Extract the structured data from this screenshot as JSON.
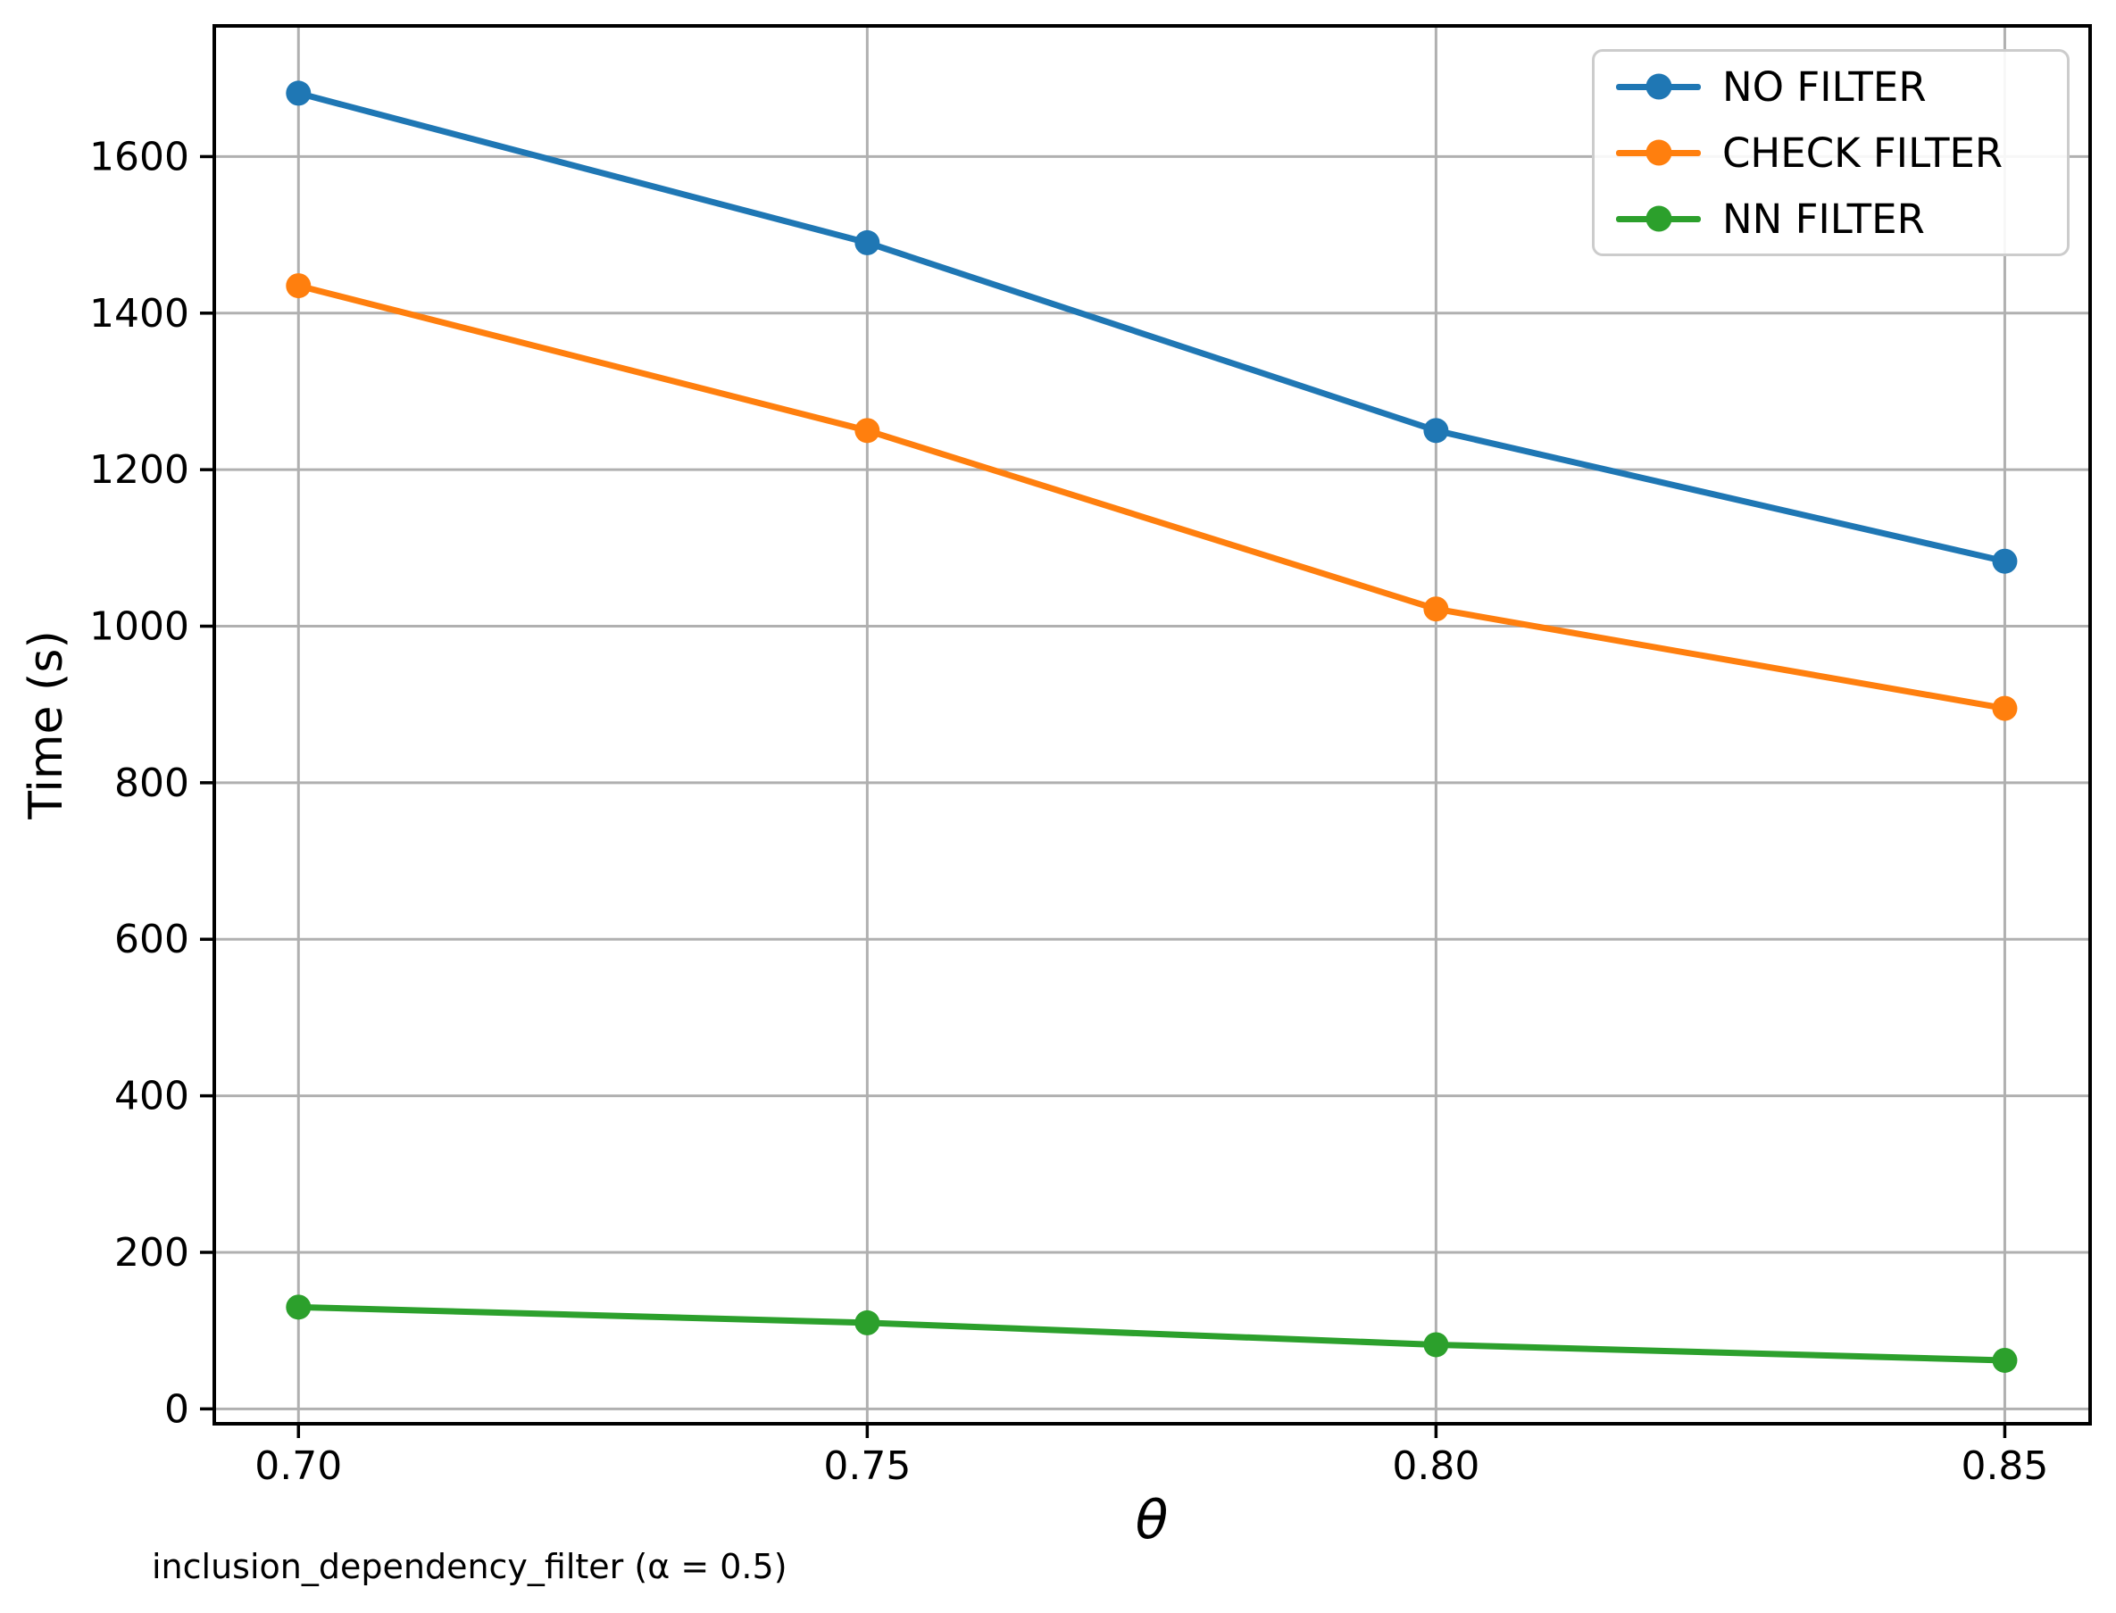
{
  "caption": "inclusion_dependency_filter (α = 0.5)",
  "chart_data": {
    "type": "line",
    "title": "",
    "xlabel": "θ",
    "ylabel": "Time (s)",
    "x": [
      0.7,
      0.75,
      0.8,
      0.85
    ],
    "xtick_labels": [
      "0.70",
      "0.75",
      "0.80",
      "0.85"
    ],
    "yticks": [
      0,
      200,
      400,
      600,
      800,
      1000,
      1200,
      1400,
      1600
    ],
    "xlim": [
      0.6926,
      0.8575
    ],
    "ylim": [
      -19,
      1767
    ],
    "grid": true,
    "legend_position": "upper right",
    "colors": {
      "grid": "#b0b0b0",
      "spine": "#000000",
      "legend_border": "#cccccc"
    },
    "series": [
      {
        "name": "NO FILTER",
        "color": "#1f77b4",
        "values": [
          1681,
          1490,
          1250,
          1083
        ]
      },
      {
        "name": "CHECK FILTER",
        "color": "#ff7f0e",
        "values": [
          1435,
          1250,
          1022,
          895
        ]
      },
      {
        "name": "NN FILTER",
        "color": "#2ca02c",
        "values": [
          130,
          110,
          82,
          62
        ]
      }
    ]
  }
}
